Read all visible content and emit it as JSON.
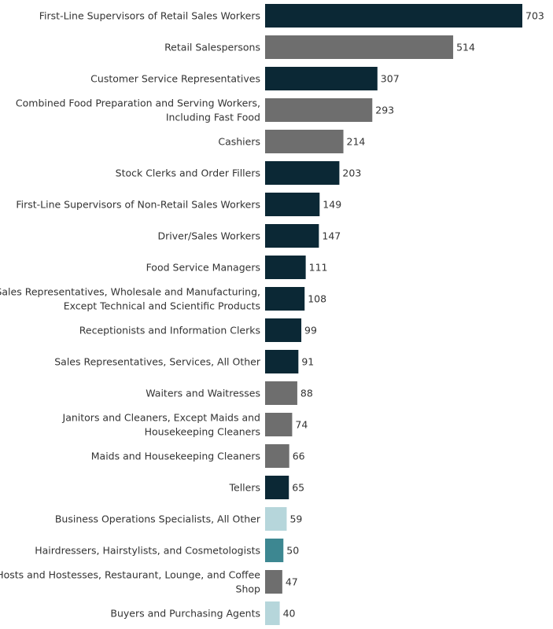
{
  "chart_data": {
    "type": "bar",
    "orientation": "horizontal",
    "title": "",
    "xlabel": "",
    "ylabel": "",
    "xlim": [
      0,
      703
    ],
    "grid": false,
    "legend": "none",
    "colors": {
      "dark": "#0b2835",
      "gray": "#6e6e6e",
      "light": "#b6d6db",
      "teal": "#3d8791"
    },
    "categories": [
      [
        "First-Line Supervisors of Retail Sales Workers"
      ],
      [
        "Retail Salespersons"
      ],
      [
        "Customer Service Representatives"
      ],
      [
        "Combined Food Preparation and Serving Workers,",
        "Including Fast Food"
      ],
      [
        "Cashiers"
      ],
      [
        "Stock Clerks and Order Fillers"
      ],
      [
        "First-Line Supervisors of Non-Retail Sales Workers"
      ],
      [
        "Driver/Sales Workers"
      ],
      [
        "Food Service Managers"
      ],
      [
        "Sales Representatives, Wholesale and Manufacturing,",
        "Except Technical and Scientific Products"
      ],
      [
        "Receptionists and Information Clerks"
      ],
      [
        "Sales Representatives, Services, All Other"
      ],
      [
        "Waiters and Waitresses"
      ],
      [
        "Janitors and Cleaners, Except Maids and",
        "Housekeeping Cleaners"
      ],
      [
        "Maids and Housekeeping Cleaners"
      ],
      [
        "Tellers"
      ],
      [
        "Business Operations Specialists, All Other"
      ],
      [
        "Hairdressers, Hairstylists, and Cosmetologists"
      ],
      [
        "Hosts and Hostesses, Restaurant, Lounge, and Coffee",
        "Shop"
      ],
      [
        "Buyers and Purchasing Agents"
      ]
    ],
    "values": [
      703,
      514,
      307,
      293,
      214,
      203,
      149,
      147,
      111,
      108,
      99,
      91,
      88,
      74,
      66,
      65,
      59,
      50,
      47,
      40
    ],
    "bar_colors": [
      "dark",
      "gray",
      "dark",
      "gray",
      "gray",
      "dark",
      "dark",
      "dark",
      "dark",
      "dark",
      "dark",
      "dark",
      "gray",
      "gray",
      "gray",
      "dark",
      "light",
      "teal",
      "gray",
      "light"
    ]
  }
}
